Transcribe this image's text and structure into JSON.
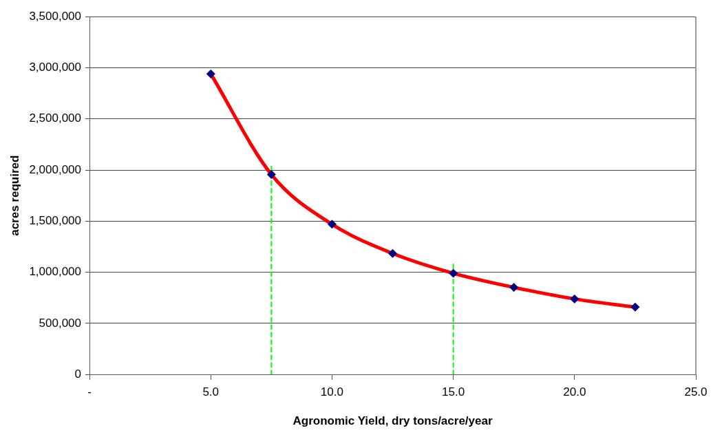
{
  "chart_data": {
    "type": "scatter",
    "xlabel": "Agronomic Yield, dry tons/acre/year",
    "ylabel": "acres required",
    "xlim": [
      0,
      25
    ],
    "xticks": [
      {
        "value": 0,
        "label": "-"
      },
      {
        "value": 5,
        "label": "5.0"
      },
      {
        "value": 10,
        "label": "10.0"
      },
      {
        "value": 15,
        "label": "15.0"
      },
      {
        "value": 20,
        "label": "20.0"
      },
      {
        "value": 25,
        "label": "25.0"
      }
    ],
    "ylim": [
      0,
      3500000
    ],
    "yticks": [
      {
        "value": 0,
        "label": "0"
      },
      {
        "value": 500000,
        "label": "500,000"
      },
      {
        "value": 1000000,
        "label": "1,000,000"
      },
      {
        "value": 1500000,
        "label": "1,500,000"
      },
      {
        "value": 2000000,
        "label": "2,000,000"
      },
      {
        "value": 2500000,
        "label": "2,500,000"
      },
      {
        "value": 3000000,
        "label": "3,000,000"
      },
      {
        "value": 3500000,
        "label": "3,500,000"
      }
    ],
    "grid": "y",
    "legend": false,
    "series": [
      {
        "type": "line",
        "color": "#ff0000",
        "marker": "none",
        "line_style": "solid",
        "x": [
          5,
          7.5,
          10,
          12.5,
          15,
          17.5,
          20,
          22.5
        ],
        "values": [
          2940000,
          1956000,
          1470000,
          1184000,
          990000,
          852000,
          739000,
          659000
        ]
      },
      {
        "color": "#000080",
        "marker": "diamond",
        "x": [
          5,
          7.5,
          10,
          12.5,
          15,
          17.5,
          20,
          22.5
        ],
        "values": [
          2940000,
          1956000,
          1470000,
          1184000,
          990000,
          852000,
          739000,
          659000
        ]
      },
      {
        "type": "line",
        "color": "#00ff00",
        "marker": "none",
        "line_style": "dashed",
        "x": [
          7.5,
          7.5
        ],
        "values": [
          0,
          2036000
        ]
      },
      {
        "type": "line",
        "color": "#00ff00",
        "marker": "none",
        "line_style": "dashed",
        "x": [
          15,
          15
        ],
        "values": [
          0,
          1078000
        ]
      }
    ]
  }
}
